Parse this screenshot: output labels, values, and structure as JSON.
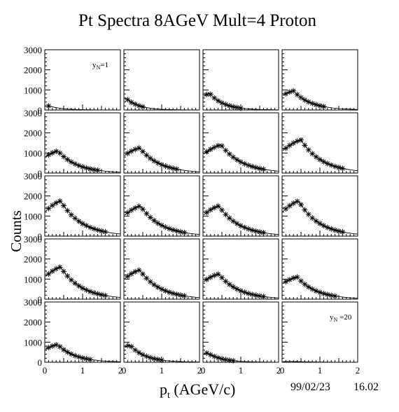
{
  "chart_data": {
    "type": "scatter",
    "title": "Pt Spectra 8AGeV Mult=4 Proton",
    "xlabel": "p_t (AGeV/c)",
    "ylabel": "Counts",
    "xlim": [
      0,
      2
    ],
    "ylim": [
      0,
      3000
    ],
    "x_ticks": [
      "0",
      "1",
      "2"
    ],
    "y_ticks": [
      "0",
      "1000",
      "2000",
      "3000"
    ],
    "grid": "4 columns x 5 rows of panels, one per rapidity bin y_N = 1..20",
    "marker": "asterisk with fitted curve",
    "panel_labels": {
      "first": {
        "main": "y",
        "sub": "N",
        "rest": "=1"
      },
      "last": {
        "main": "y",
        "sub": "N",
        "rest": " =20"
      }
    },
    "panels": [
      {
        "id": 1,
        "peak": 200,
        "peak_pt": 0.12,
        "width": 0.4,
        "n": 1
      },
      {
        "id": 2,
        "peak": 580,
        "peak_pt": 0.06,
        "width": 0.4,
        "n": 5
      },
      {
        "id": 3,
        "peak": 820,
        "peak_pt": 0.18,
        "width": 0.45,
        "n": 10
      },
      {
        "id": 4,
        "peak": 950,
        "peak_pt": 0.3,
        "width": 0.55,
        "n": 11
      },
      {
        "id": 5,
        "peak": 1100,
        "peak_pt": 0.35,
        "width": 0.6,
        "n": 14
      },
      {
        "id": 6,
        "peak": 1250,
        "peak_pt": 0.42,
        "width": 0.62,
        "n": 14
      },
      {
        "id": 7,
        "peak": 1400,
        "peak_pt": 0.48,
        "width": 0.66,
        "n": 16
      },
      {
        "id": 8,
        "peak": 1650,
        "peak_pt": 0.5,
        "width": 0.66,
        "n": 16
      },
      {
        "id": 9,
        "peak": 1750,
        "peak_pt": 0.42,
        "width": 0.66,
        "n": 16
      },
      {
        "id": 10,
        "peak": 1500,
        "peak_pt": 0.44,
        "width": 0.64,
        "n": 16
      },
      {
        "id": 11,
        "peak": 1500,
        "peak_pt": 0.42,
        "width": 0.64,
        "n": 16
      },
      {
        "id": 12,
        "peak": 1750,
        "peak_pt": 0.44,
        "width": 0.64,
        "n": 16
      },
      {
        "id": 13,
        "peak": 1600,
        "peak_pt": 0.42,
        "width": 0.64,
        "n": 16
      },
      {
        "id": 14,
        "peak": 1450,
        "peak_pt": 0.42,
        "width": 0.64,
        "n": 16
      },
      {
        "id": 15,
        "peak": 1250,
        "peak_pt": 0.42,
        "width": 0.62,
        "n": 16
      },
      {
        "id": 16,
        "peak": 1100,
        "peak_pt": 0.4,
        "width": 0.6,
        "n": 14
      },
      {
        "id": 17,
        "peak": 880,
        "peak_pt": 0.34,
        "width": 0.55,
        "n": 12
      },
      {
        "id": 18,
        "peak": 860,
        "peak_pt": 0.16,
        "width": 0.48,
        "n": 10
      },
      {
        "id": 19,
        "peak": 460,
        "peak_pt": 0.12,
        "width": 0.45,
        "n": 8
      },
      {
        "id": 20,
        "peak": 40,
        "peak_pt": 0.3,
        "width": 0.6,
        "n": 0
      }
    ]
  },
  "footer": {
    "date": "99/02/23",
    "time": "16.02"
  }
}
